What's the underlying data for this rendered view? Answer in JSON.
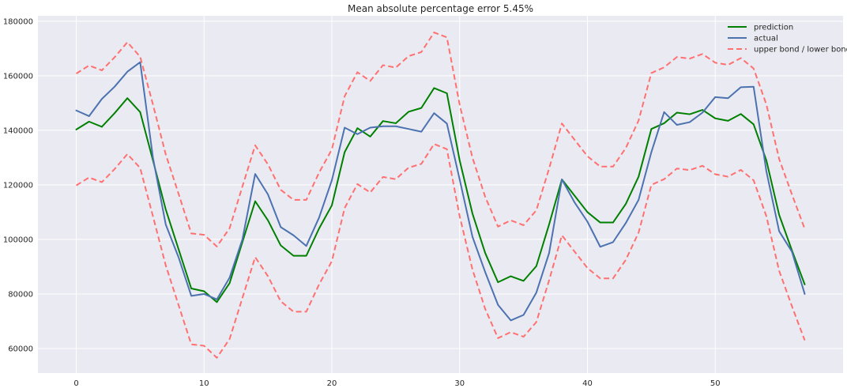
{
  "chart_data": {
    "type": "line",
    "title": "Mean absolute percentage error 5.45%",
    "xlabel": "",
    "ylabel": "",
    "xlim": [
      -3,
      60
    ],
    "ylim": [
      51000,
      182000
    ],
    "xticks": [
      0,
      10,
      20,
      30,
      40,
      50
    ],
    "yticks": [
      60000,
      80000,
      100000,
      120000,
      140000,
      160000,
      180000
    ],
    "grid": true,
    "legend_position": "top-right",
    "x": [
      0,
      1,
      2,
      3,
      4,
      5,
      6,
      7,
      8,
      9,
      10,
      11,
      12,
      13,
      14,
      15,
      16,
      17,
      18,
      19,
      20,
      21,
      22,
      23,
      24,
      25,
      26,
      27,
      28,
      29,
      30,
      31,
      32,
      33,
      34,
      35,
      36,
      37,
      38,
      39,
      40,
      41,
      42,
      43,
      44,
      45,
      46,
      47,
      48,
      49,
      50,
      51,
      52,
      53,
      54,
      55,
      56,
      57
    ],
    "series": [
      {
        "name": "prediction",
        "color": "#008000",
        "dash": "solid",
        "values": [
          140300,
          143200,
          141300,
          146300,
          151800,
          146700,
          129000,
          111000,
          96500,
          82000,
          81000,
          77000,
          84000,
          99000,
          114000,
          107000,
          97800,
          94000,
          94000,
          104000,
          112500,
          132000,
          140800,
          137700,
          143400,
          142600,
          146800,
          148200,
          155500,
          153600,
          129000,
          109500,
          95000,
          84300,
          86500,
          84800,
          90200,
          105500,
          122000,
          116000,
          110000,
          106200,
          106200,
          113000,
          123000,
          140500,
          142600,
          146500,
          145900,
          147500,
          144400,
          143500,
          146000,
          142200,
          129000,
          109000,
          96000,
          83500
        ]
      },
      {
        "name": "actual",
        "color": "#4c72b0",
        "dash": "solid",
        "values": [
          147300,
          145200,
          151500,
          156000,
          161500,
          165000,
          130000,
          105500,
          93500,
          79300,
          80000,
          78000,
          86000,
          100000,
          124000,
          116500,
          104500,
          101500,
          97600,
          108000,
          121700,
          141000,
          138600,
          141000,
          141500,
          141500,
          140500,
          139500,
          146300,
          142500,
          122000,
          101000,
          88000,
          76000,
          70300,
          72300,
          80500,
          95000,
          122000,
          113500,
          106500,
          97300,
          99000,
          106000,
          114500,
          132000,
          146700,
          142000,
          143000,
          146500,
          152200,
          151800,
          155800,
          156000,
          125000,
          103000,
          95500,
          80000
        ]
      },
      {
        "name": "upper bond / lower bond",
        "color": "#ff7070",
        "dash": "dashed",
        "values": [
          160800,
          163800,
          162000,
          166800,
          172300,
          167000,
          149500,
          131200,
          116800,
          102200,
          101700,
          97400,
          104100,
          119400,
          134500,
          127500,
          118200,
          114500,
          114500,
          124500,
          133000,
          152500,
          161300,
          158100,
          163900,
          163000,
          167200,
          168700,
          175900,
          174100,
          149400,
          130000,
          115600,
          104700,
          107000,
          105200,
          110700,
          126000,
          142500,
          136500,
          130500,
          126700,
          126700,
          133500,
          143600,
          161000,
          163100,
          166900,
          166300,
          168000,
          164800,
          164000,
          166500,
          162700,
          149500,
          129500,
          116500,
          103900
        ]
      },
      {
        "name": "upper bond / lower bond",
        "color": "#ff7070",
        "dash": "dashed",
        "show_in_legend": false,
        "values": [
          119800,
          122700,
          121000,
          125800,
          131300,
          126200,
          108500,
          90500,
          76000,
          61500,
          61000,
          56600,
          63500,
          78500,
          93500,
          86500,
          77300,
          73500,
          73500,
          83500,
          92000,
          111500,
          120300,
          117200,
          122900,
          122100,
          126300,
          127700,
          135000,
          133100,
          108500,
          89000,
          74500,
          63800,
          66000,
          64300,
          69700,
          85000,
          101500,
          95500,
          89500,
          85700,
          85700,
          92500,
          102500,
          120000,
          122100,
          126000,
          125400,
          127000,
          123900,
          123000,
          125500,
          121700,
          108500,
          88500,
          75500,
          63000
        ]
      }
    ]
  }
}
